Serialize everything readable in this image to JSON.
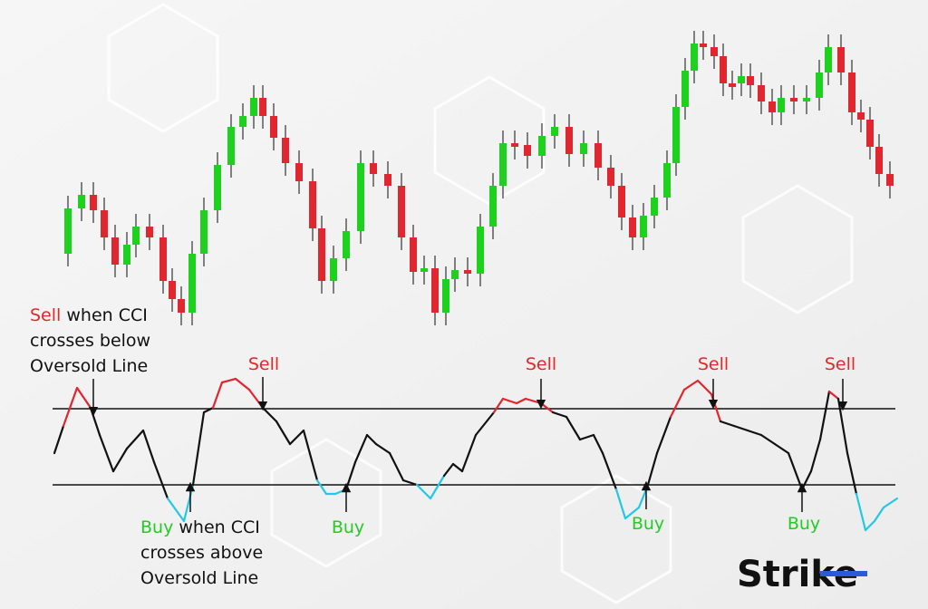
{
  "sell_note": {
    "keyword": "Sell",
    "lines": [
      "when CCI",
      "crosses below",
      "Oversold Line"
    ]
  },
  "buy_note": {
    "keyword": "Buy",
    "lines": [
      "when CCI",
      "crosses above",
      "Oversold Line"
    ]
  },
  "sell_labels": [
    "Sell",
    "Sell",
    "Sell",
    "Sell"
  ],
  "buy_labels": [
    "Buy",
    "Buy",
    "Buy"
  ],
  "logo": "Strike"
}
